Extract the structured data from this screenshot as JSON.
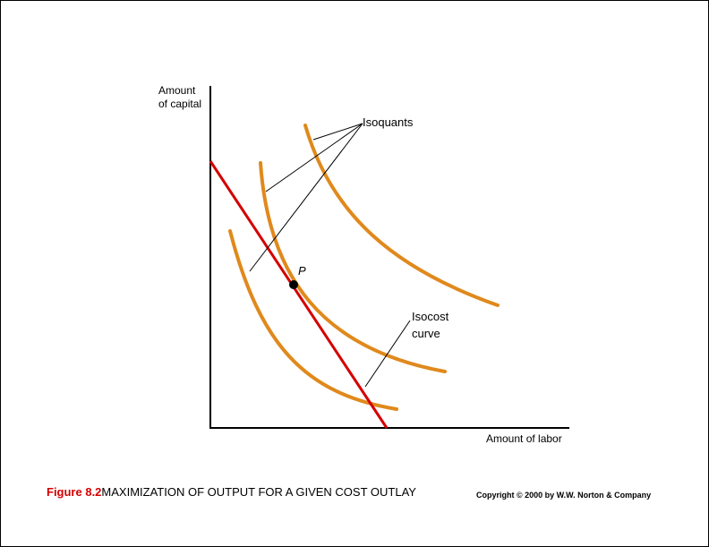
{
  "axes": {
    "y_label": [
      "Amount",
      "of capital"
    ],
    "x_label": "Amount of labor"
  },
  "labels": {
    "isoquants": "Isoquants",
    "point": "P",
    "isocost": [
      "Isocost",
      "curve"
    ]
  },
  "caption": {
    "figure": "Figure 8.2",
    "title": "MAXIMIZATION OF OUTPUT FOR A GIVEN COST OUTLAY",
    "copyright": "Copyright © 2000 by W.W. Norton & Company"
  }
}
